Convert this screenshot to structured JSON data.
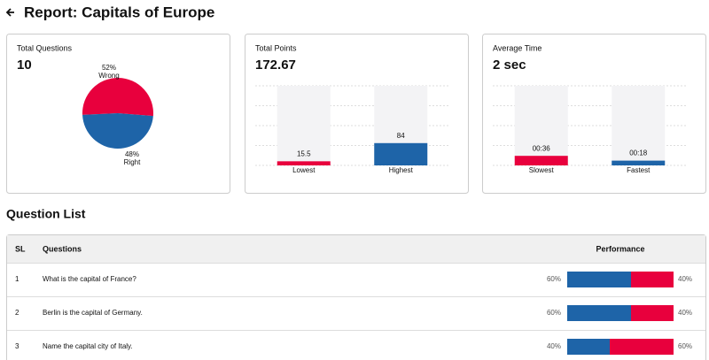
{
  "header": {
    "title": "Report: Capitals of Europe"
  },
  "cards": [
    {
      "label": "Total Questions",
      "value": "10",
      "chart": {
        "type": "pie",
        "categories": [
          "Wrong",
          "Right"
        ],
        "values": [
          52,
          48
        ],
        "value_labels": [
          "52%",
          "48%"
        ],
        "colors": [
          "#e8003d",
          "#1e64a8"
        ]
      }
    },
    {
      "label": "Total Points",
      "value": "172.67",
      "chart": {
        "type": "bar",
        "categories": [
          "Lowest",
          "Highest"
        ],
        "values": [
          15.5,
          84
        ],
        "colors": [
          "#e8003d",
          "#1e64a8"
        ],
        "ylim": [
          0,
          300
        ],
        "yticks": [
          0,
          75,
          150,
          225,
          300
        ],
        "grid": true
      }
    },
    {
      "label": "Average Time",
      "value": "2 sec",
      "chart": {
        "type": "bar",
        "categories": [
          "Slowest",
          "Fastest"
        ],
        "values": [
          36,
          18
        ],
        "value_labels": [
          "00:36",
          "00:18"
        ],
        "colors": [
          "#e8003d",
          "#1e64a8"
        ],
        "ylim": [
          0,
          300
        ],
        "yticks": [
          0,
          75,
          150,
          225,
          300
        ],
        "grid": true
      }
    }
  ],
  "question_list": {
    "title": "Question List",
    "columns": [
      "SL",
      "Questions",
      "Performance"
    ],
    "rows": [
      {
        "sl": "1",
        "question": "What is the capital of France?",
        "correct": 60,
        "correct_label": "60%",
        "wrong": 40,
        "wrong_label": "40%"
      },
      {
        "sl": "2",
        "question": "Berlin is the capital of Germany.",
        "correct": 60,
        "correct_label": "60%",
        "wrong": 40,
        "wrong_label": "40%"
      },
      {
        "sl": "3",
        "question": "Name the capital city of Italy.",
        "correct": 40,
        "correct_label": "40%",
        "wrong": 60,
        "wrong_label": "60%"
      }
    ],
    "colors": {
      "correct": "#1e64a8",
      "wrong": "#e8003d"
    }
  }
}
